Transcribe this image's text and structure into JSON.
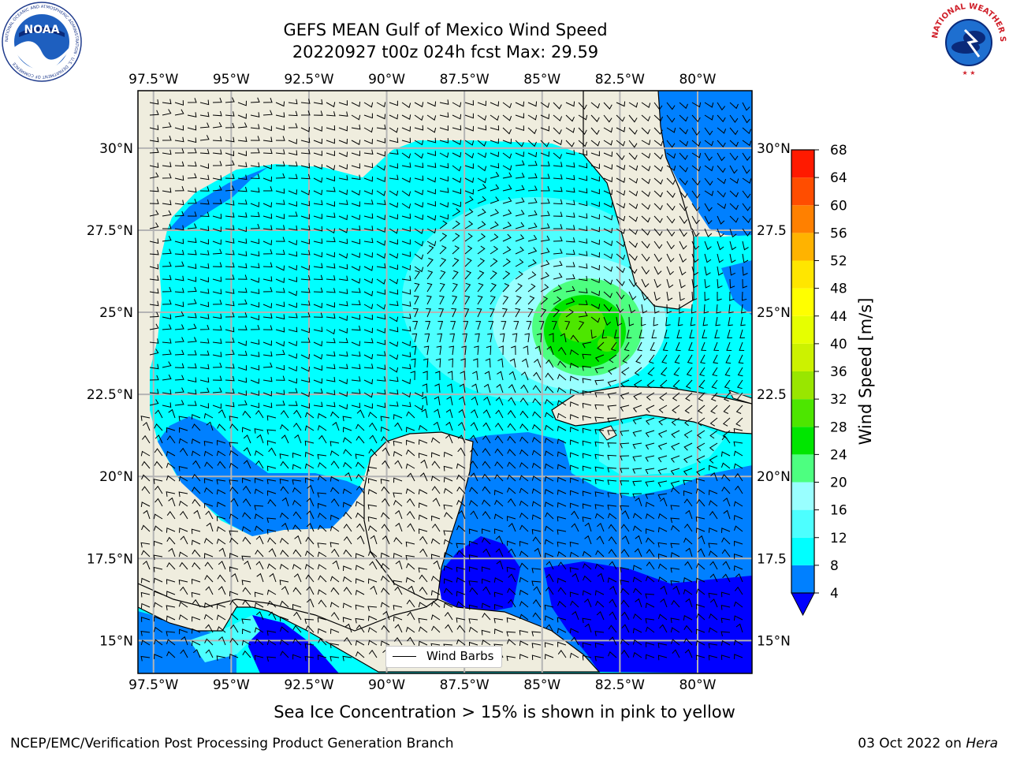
{
  "title": {
    "line1": "GEFS MEAN Gulf of Mexico Wind Speed",
    "line2": "20220927 t00z 024h fcst   Max: 29.59"
  },
  "map": {
    "lon_labels_top": [
      "97.5°W",
      "95°W",
      "92.5°W",
      "90°W",
      "87.5°W",
      "85°W",
      "82.5°W",
      "80°W"
    ],
    "lon_labels_bottom": [
      "97.5°W",
      "95°W",
      "92.5°W",
      "90°W",
      "87.5°W",
      "85°W",
      "82.5°W",
      "80°W"
    ],
    "lat_labels_left": [
      "30°N",
      "27.5°N",
      "25°N",
      "22.5°N",
      "20°N",
      "17.5°N",
      "15°N"
    ],
    "lat_labels_right": [
      "30°N",
      "27.5",
      "25°N",
      "22.5",
      "20°N",
      "17.5",
      "15°N"
    ],
    "lon_values": [
      -97.5,
      -95,
      -92.5,
      -90,
      -87.5,
      -85,
      -82.5,
      -80
    ],
    "lat_values": [
      30,
      27.5,
      25,
      22.5,
      20,
      17.5,
      15
    ],
    "extent": {
      "lon_min": -98,
      "lon_max": -78.25,
      "lat_min": 14,
      "lat_max": 31.75
    },
    "land_color": "#efedde",
    "grid_color": "#b4b4b4",
    "max_wind": 29.59,
    "max_center": {
      "lon": -83.6,
      "lat": 24.4
    },
    "legend_label": "Wind Barbs"
  },
  "colorbar": {
    "label": "Wind Speed [m/s]",
    "tick_labels": [
      "4",
      "8",
      "12",
      "16",
      "20",
      "24",
      "28",
      "32",
      "36",
      "40",
      "44",
      "48",
      "52",
      "56",
      "60",
      "64",
      "68"
    ],
    "bins": [
      {
        "range": [
          4,
          8
        ],
        "color": "#0080ff"
      },
      {
        "range": [
          8,
          12
        ],
        "color": "#00ffff"
      },
      {
        "range": [
          12,
          16
        ],
        "color": "#4dffff"
      },
      {
        "range": [
          16,
          20
        ],
        "color": "#99ffff"
      },
      {
        "range": [
          20,
          24
        ],
        "color": "#4dff80"
      },
      {
        "range": [
          24,
          28
        ],
        "color": "#00e600"
      },
      {
        "range": [
          28,
          32
        ],
        "color": "#4de600"
      },
      {
        "range": [
          32,
          36
        ],
        "color": "#99e600"
      },
      {
        "range": [
          36,
          40
        ],
        "color": "#ccf200"
      },
      {
        "range": [
          40,
          44
        ],
        "color": "#e6ff00"
      },
      {
        "range": [
          44,
          48
        ],
        "color": "#ffff00"
      },
      {
        "range": [
          48,
          52
        ],
        "color": "#ffe600"
      },
      {
        "range": [
          52,
          56
        ],
        "color": "#ffb300"
      },
      {
        "range": [
          56,
          60
        ],
        "color": "#ff8000"
      },
      {
        "range": [
          60,
          64
        ],
        "color": "#ff4d00"
      },
      {
        "range": [
          64,
          68
        ],
        "color": "#ff1a00"
      }
    ],
    "under_color": "#0000ff",
    "over_color": "#ff0000"
  },
  "footnote": "Sea Ice Concentration > 15% is shown in pink to yellow",
  "footer": {
    "left": "NCEP/EMC/Verification Post Processing Product Generation Branch",
    "right_date": "03 Oct 2022 on ",
    "right_host": "Hera"
  },
  "logos": {
    "noaa_text": "NOAA",
    "noaa_ring": "NATIONAL OCEANIC AND ATMOSPHERIC ADMINISTRATION · U.S. DEPARTMENT OF COMMERCE",
    "nws_ring": "NATIONAL WEATHER SERVICE"
  }
}
